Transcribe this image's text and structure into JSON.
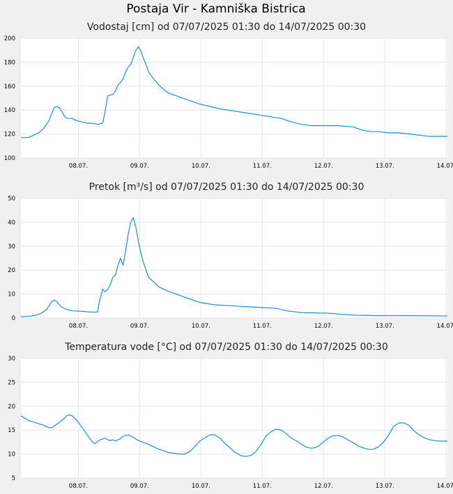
{
  "title": "Postaja Vir - Kamniška Bistrica",
  "x_tick_labels": [
    "08.07.",
    "09.07.",
    "10.07.",
    "11.07.",
    "12.07.",
    "13.07.",
    "14.07."
  ],
  "colors": {
    "line": "#1b8fd6",
    "plot_bg": "#ffffff",
    "page_bg": "#f0f0f0",
    "grid": "#e6e6e6"
  },
  "chart_data": [
    {
      "type": "line",
      "title": "Vodostaj [cm] od 07/07/2025 01:30 do 14/07/2025 00:30",
      "xlabel": "",
      "ylabel": "",
      "xlim": [
        0,
        167
      ],
      "ylim": [
        100,
        200
      ],
      "y_ticks": [
        100,
        120,
        140,
        160,
        180,
        200
      ],
      "grid": true,
      "series": [
        {
          "values": [
            [
              0,
              117
            ],
            [
              3,
              117
            ],
            [
              5,
              119
            ],
            [
              7,
              121
            ],
            [
              9,
              125
            ],
            [
              11,
              131
            ],
            [
              12,
              137
            ],
            [
              13,
              142
            ],
            [
              14,
              143
            ],
            [
              15,
              142
            ],
            [
              16,
              139
            ],
            [
              17,
              135
            ],
            [
              18,
              133
            ],
            [
              20,
              133
            ],
            [
              22,
              131
            ],
            [
              24,
              130
            ],
            [
              26,
              129
            ],
            [
              28,
              129
            ],
            [
              30,
              128
            ],
            [
              32,
              129
            ],
            [
              33,
              139
            ],
            [
              34,
              152
            ],
            [
              36,
              153
            ],
            [
              37,
              156
            ],
            [
              38,
              161
            ],
            [
              39,
              163
            ],
            [
              40,
              166
            ],
            [
              41,
              172
            ],
            [
              42,
              176
            ],
            [
              43,
              178
            ],
            [
              44,
              184
            ],
            [
              45,
              190
            ],
            [
              46,
              193
            ],
            [
              47,
              189
            ],
            [
              48,
              183
            ],
            [
              49,
              178
            ],
            [
              50,
              172
            ],
            [
              52,
              166
            ],
            [
              54,
              161
            ],
            [
              56,
              157
            ],
            [
              58,
              154
            ],
            [
              62,
              151
            ],
            [
              66,
              148
            ],
            [
              70,
              145
            ],
            [
              74,
              143
            ],
            [
              78,
              141
            ],
            [
              84,
              139
            ],
            [
              90,
              137
            ],
            [
              96,
              135
            ],
            [
              102,
              133
            ],
            [
              106,
              130
            ],
            [
              110,
              128
            ],
            [
              114,
              127
            ],
            [
              118,
              127
            ],
            [
              124,
              127
            ],
            [
              130,
              126
            ],
            [
              134,
              123
            ],
            [
              137,
              122
            ],
            [
              140,
              122
            ],
            [
              144,
              121
            ],
            [
              148,
              121
            ],
            [
              152,
              120
            ],
            [
              156,
              119
            ],
            [
              160,
              118
            ],
            [
              164,
              118
            ],
            [
              167,
              118
            ]
          ]
        }
      ]
    },
    {
      "type": "line",
      "title": "Pretok [m³/s] od 07/07/2025 01:30 do 14/07/2025 00:30",
      "xlabel": "",
      "ylabel": "",
      "xlim": [
        0,
        167
      ],
      "ylim": [
        0,
        50
      ],
      "y_ticks": [
        0,
        10,
        20,
        30,
        40,
        50
      ],
      "grid": true,
      "series": [
        {
          "values": [
            [
              0,
              0.5
            ],
            [
              4,
              0.8
            ],
            [
              6,
              1.2
            ],
            [
              8,
              2
            ],
            [
              10,
              3.5
            ],
            [
              11,
              5
            ],
            [
              12,
              6.8
            ],
            [
              13,
              7.5
            ],
            [
              14,
              7
            ],
            [
              15,
              5.5
            ],
            [
              16,
              4.5
            ],
            [
              18,
              3.5
            ],
            [
              20,
              3
            ],
            [
              24,
              2.8
            ],
            [
              27,
              2.5
            ],
            [
              29,
              2.4
            ],
            [
              30,
              2.5
            ],
            [
              31,
              8
            ],
            [
              32,
              12
            ],
            [
              33,
              11
            ],
            [
              34,
              12
            ],
            [
              35,
              14
            ],
            [
              36,
              17
            ],
            [
              37,
              18
            ],
            [
              38,
              22
            ],
            [
              39,
              25
            ],
            [
              40,
              22
            ],
            [
              41,
              28
            ],
            [
              42,
              35
            ],
            [
              43,
              40
            ],
            [
              44,
              42
            ],
            [
              45,
              38
            ],
            [
              46,
              32
            ],
            [
              47,
              27
            ],
            [
              48,
              23
            ],
            [
              49,
              20
            ],
            [
              50,
              17
            ],
            [
              52,
              15
            ],
            [
              54,
              13
            ],
            [
              58,
              11
            ],
            [
              62,
              9.5
            ],
            [
              66,
              8
            ],
            [
              70,
              6.5
            ],
            [
              76,
              5.5
            ],
            [
              84,
              5
            ],
            [
              92,
              4.5
            ],
            [
              100,
              4
            ],
            [
              104,
              3
            ],
            [
              110,
              2.2
            ],
            [
              120,
              2
            ],
            [
              126,
              1.5
            ],
            [
              130,
              1.2
            ],
            [
              140,
              1
            ],
            [
              150,
              1
            ],
            [
              160,
              0.9
            ],
            [
              167,
              0.8
            ]
          ]
        }
      ]
    },
    {
      "type": "line",
      "title": "Temperatura vode [°C] od 07/07/2025 01:30 do 14/07/2025 00:30",
      "xlabel": "",
      "ylabel": "",
      "xlim": [
        0,
        167
      ],
      "ylim": [
        5,
        30
      ],
      "y_ticks": [
        5,
        10,
        15,
        20,
        25,
        30
      ],
      "grid": true,
      "series": [
        {
          "values": [
            [
              0,
              18
            ],
            [
              3,
              17
            ],
            [
              6,
              16.5
            ],
            [
              9,
              16
            ],
            [
              11,
              15.5
            ],
            [
              12,
              15.5
            ],
            [
              14,
              16.2
            ],
            [
              16,
              17
            ],
            [
              18,
              18
            ],
            [
              19,
              18.2
            ],
            [
              20,
              18
            ],
            [
              22,
              17
            ],
            [
              24,
              15.5
            ],
            [
              26,
              14
            ],
            [
              28,
              12.5
            ],
            [
              29,
              12.2
            ],
            [
              31,
              13
            ],
            [
              33,
              13.3
            ],
            [
              34,
              13
            ],
            [
              35,
              12.8
            ],
            [
              36,
              13
            ],
            [
              37,
              12.7
            ],
            [
              38,
              13
            ],
            [
              39,
              13.2
            ],
            [
              40,
              13.7
            ],
            [
              42,
              14
            ],
            [
              44,
              13.5
            ],
            [
              46,
              12.8
            ],
            [
              50,
              12
            ],
            [
              54,
              11
            ],
            [
              58,
              10.3
            ],
            [
              62,
              10
            ],
            [
              64,
              10
            ],
            [
              66,
              10.5
            ],
            [
              68,
              11.5
            ],
            [
              70,
              12.7
            ],
            [
              72,
              13.4
            ],
            [
              74,
              14
            ],
            [
              76,
              14
            ],
            [
              78,
              13.3
            ],
            [
              80,
              12.2
            ],
            [
              82,
              11.2
            ],
            [
              84,
              10.3
            ],
            [
              86,
              9.7
            ],
            [
              88,
              9.5
            ],
            [
              90,
              9.7
            ],
            [
              92,
              10.5
            ],
            [
              94,
              12
            ],
            [
              96,
              13.8
            ],
            [
              98,
              14.7
            ],
            [
              100,
              15.2
            ],
            [
              102,
              15
            ],
            [
              104,
              14.2
            ],
            [
              106,
              13.3
            ],
            [
              108,
              12.7
            ],
            [
              110,
              12
            ],
            [
              112,
              11.4
            ],
            [
              114,
              11.2
            ],
            [
              116,
              11.5
            ],
            [
              118,
              12.3
            ],
            [
              120,
              13.2
            ],
            [
              122,
              13.8
            ],
            [
              124,
              13.9
            ],
            [
              126,
              13.6
            ],
            [
              128,
              13
            ],
            [
              130,
              12.4
            ],
            [
              132,
              11.7
            ],
            [
              134,
              11.3
            ],
            [
              136,
              11
            ],
            [
              138,
              11
            ],
            [
              140,
              11.5
            ],
            [
              142,
              12.5
            ],
            [
              144,
              14
            ],
            [
              146,
              15.8
            ],
            [
              148,
              16.5
            ],
            [
              150,
              16.5
            ],
            [
              152,
              16
            ],
            [
              154,
              14.8
            ],
            [
              156,
              14
            ],
            [
              158,
              13.4
            ],
            [
              160,
              13
            ],
            [
              162,
              12.8
            ],
            [
              164,
              12.7
            ],
            [
              166,
              12.7
            ],
            [
              167,
              12.7
            ]
          ]
        }
      ]
    }
  ]
}
